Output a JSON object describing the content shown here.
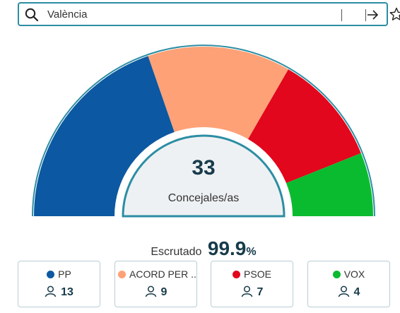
{
  "search": {
    "value": "València"
  },
  "summary": {
    "total_seats": "33",
    "seats_label": "Concejales/as",
    "scrutiny_label": "Escrutado",
    "scrutiny_value": "99.9",
    "scrutiny_unit": "%"
  },
  "parties": [
    {
      "name": "PP",
      "seats": "13",
      "color": "#0c58a2"
    },
    {
      "name": "ACORD PER ...",
      "seats": "9",
      "color": "#fea177"
    },
    {
      "name": "PSOE",
      "seats": "7",
      "color": "#e2071c"
    },
    {
      "name": "VOX",
      "seats": "4",
      "color": "#0bbb2f"
    }
  ],
  "icons": {
    "search": "search-icon",
    "go": "arrow-right-icon",
    "favorite": "star-icon",
    "seats": "person-icon"
  }
}
